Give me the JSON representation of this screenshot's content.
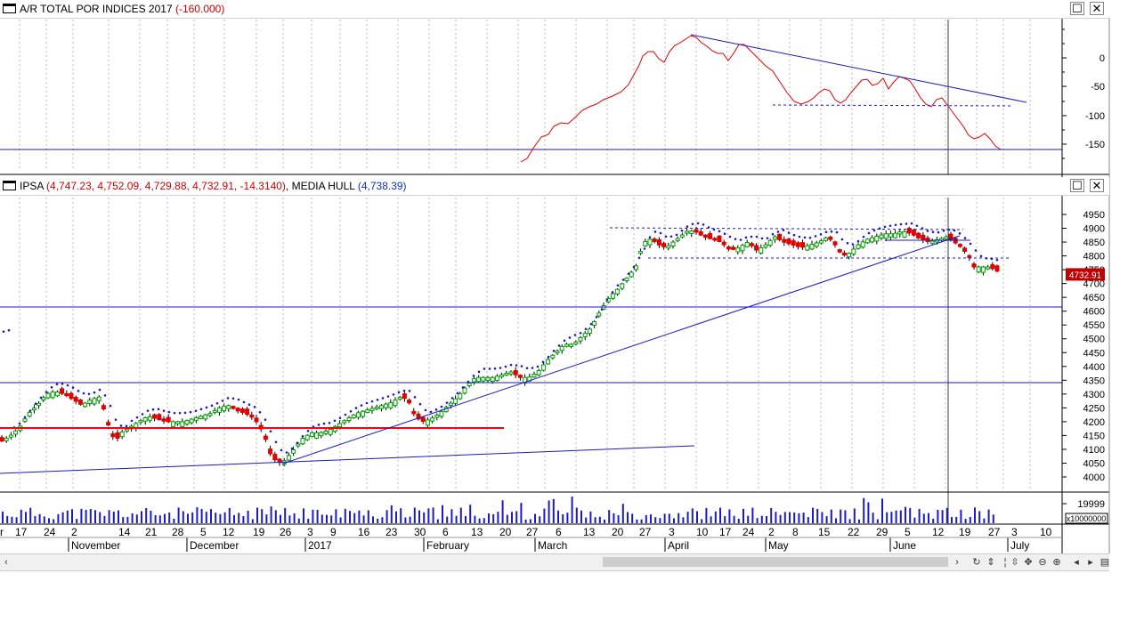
{
  "top_pane": {
    "title": "A/R TOTAL POR INDICES 2017",
    "value": "(-160.000)",
    "max_icon": "maximize-icon",
    "close_icon": "close-icon",
    "yticks": [
      "0",
      "-50",
      "-100",
      "-150"
    ]
  },
  "main_pane": {
    "title_prefix": "IPSA",
    "ohlc": "(4,747.23, 4,752.09, 4,729.88, 4,732.91, -14.3140)",
    "indicator_label": ", MEDIA HULL",
    "indicator_value": "(4,738.39)",
    "last_price": "4732.91",
    "yticks": [
      "4950",
      "4900",
      "4850",
      "4800",
      "4750",
      "4700",
      "4650",
      "4600",
      "4550",
      "4500",
      "4450",
      "4400",
      "4350",
      "4300",
      "4250",
      "4200",
      "4150",
      "4100",
      "4050",
      "4000"
    ]
  },
  "volume_pane": {
    "ytick": "19999",
    "multiplier": "x10000000"
  },
  "xaxis": {
    "days": [
      "r",
      "17",
      "24",
      "2",
      "14",
      "21",
      "28",
      "5",
      "12",
      "19",
      "26",
      "3",
      "9",
      "16",
      "23",
      "30",
      "6",
      "13",
      "20",
      "27",
      "6",
      "13",
      "20",
      "27",
      "3",
      "10",
      "17",
      "24",
      "2",
      "8",
      "15",
      "22",
      "29",
      "5",
      "12",
      "19",
      "27",
      "3",
      "10"
    ],
    "months": [
      "November",
      "December",
      "2017",
      "February",
      "March",
      "April",
      "May",
      "June",
      "July"
    ]
  },
  "colors": {
    "up": "#00a000",
    "down": "#e00000",
    "trend": "#1a1ac8",
    "ar_line": "#e00000",
    "support": "#ff0000"
  },
  "icons": [
    "scroll-left-icon",
    "scroll-right-icon",
    "sync-icon",
    "scroll-lock-icon",
    "move-icon",
    "zoom-out-icon",
    "zoom-in-icon",
    "prev-icon",
    "next-icon",
    "grid-icon"
  ]
}
